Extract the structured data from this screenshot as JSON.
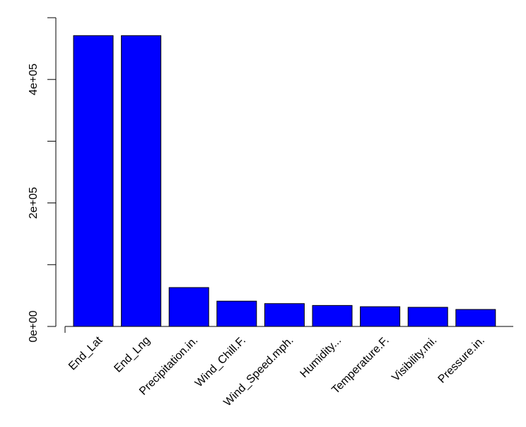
{
  "chart_data": {
    "type": "bar",
    "categories": [
      "End_Lat",
      "End_Lng",
      "Precipitation.in.",
      "Wind_Chill.F.",
      "Wind_Speed.mph.",
      "Humidity...",
      "Temperature.F.",
      "Visibility.mi.",
      "Pressure.in."
    ],
    "values": [
      471000,
      471000,
      63000,
      41000,
      37000,
      34000,
      32000,
      31000,
      27500
    ],
    "color": "#0000ff",
    "ylim": [
      0,
      500000
    ],
    "yticks": [
      {
        "value": 0,
        "label": "0e+00"
      },
      {
        "value": 100000,
        "label": null
      },
      {
        "value": 200000,
        "label": "2e+05"
      },
      {
        "value": 300000,
        "label": null
      },
      {
        "value": 400000,
        "label": "4e+05"
      },
      {
        "value": 500000,
        "label": null
      }
    ]
  }
}
